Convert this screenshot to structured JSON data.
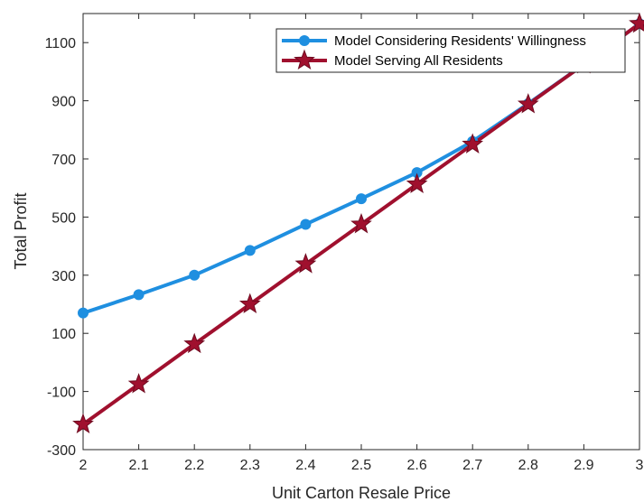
{
  "chart_data": {
    "type": "line",
    "title": "",
    "xlabel": "Unit Carton Resale Price",
    "ylabel": "Total Profit",
    "xlim": [
      2,
      3
    ],
    "ylim": [
      -300,
      1200
    ],
    "xticks": [
      "2",
      "2.1",
      "2.2",
      "2.3",
      "2.4",
      "2.5",
      "2.6",
      "2.7",
      "2.8",
      "2.9",
      "3"
    ],
    "yticks": [
      "-300",
      "-100",
      "100",
      "300",
      "500",
      "700",
      "900",
      "1100"
    ],
    "grid": false,
    "legend_position": "top-right",
    "series": [
      {
        "name": "Model Considering Residents' Willingness",
        "color": "#1f8fe0",
        "marker": "circle",
        "x": [
          2,
          2.1,
          2.2,
          2.3,
          2.4,
          2.5,
          2.6,
          2.7,
          2.8,
          2.9,
          3
        ],
        "y": [
          170,
          233,
          300,
          385,
          475,
          563,
          653,
          760,
          890,
          1025,
          1165
        ]
      },
      {
        "name": "Model Serving All Residents",
        "color": "#a0102e",
        "marker": "star",
        "x": [
          2,
          2.1,
          2.2,
          2.3,
          2.4,
          2.5,
          2.6,
          2.7,
          2.8,
          2.9,
          3
        ],
        "y": [
          -213,
          -75,
          63,
          200,
          338,
          475,
          613,
          750,
          888,
          1025,
          1165
        ]
      }
    ]
  }
}
